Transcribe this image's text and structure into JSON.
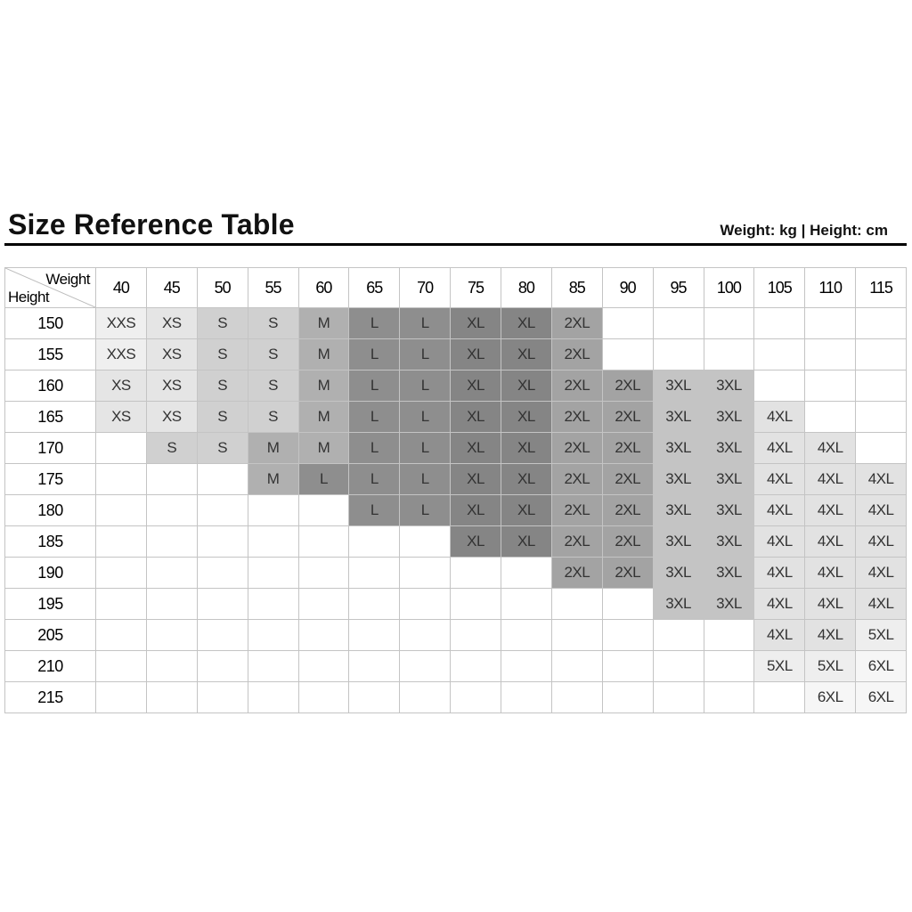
{
  "title": "Size Reference Table",
  "units": "Weight: kg | Height: cm",
  "corner": {
    "weight_label": "Weight",
    "height_label": "Height"
  },
  "weights": [
    "40",
    "45",
    "50",
    "55",
    "60",
    "65",
    "70",
    "75",
    "80",
    "85",
    "90",
    "95",
    "100",
    "105",
    "110",
    "115"
  ],
  "rows": [
    {
      "height": "150",
      "sizes": [
        "XXS",
        "XS",
        "S",
        "S",
        "M",
        "L",
        "L",
        "XL",
        "XL",
        "2XL",
        "",
        "",
        "",
        "",
        "",
        ""
      ]
    },
    {
      "height": "155",
      "sizes": [
        "XXS",
        "XS",
        "S",
        "S",
        "M",
        "L",
        "L",
        "XL",
        "XL",
        "2XL",
        "",
        "",
        "",
        "",
        "",
        ""
      ]
    },
    {
      "height": "160",
      "sizes": [
        "XS",
        "XS",
        "S",
        "S",
        "M",
        "L",
        "L",
        "XL",
        "XL",
        "2XL",
        "2XL",
        "3XL",
        "3XL",
        "",
        "",
        ""
      ]
    },
    {
      "height": "165",
      "sizes": [
        "XS",
        "XS",
        "S",
        "S",
        "M",
        "L",
        "L",
        "XL",
        "XL",
        "2XL",
        "2XL",
        "3XL",
        "3XL",
        "4XL",
        "",
        ""
      ]
    },
    {
      "height": "170",
      "sizes": [
        "",
        "S",
        "S",
        "M",
        "M",
        "L",
        "L",
        "XL",
        "XL",
        "2XL",
        "2XL",
        "3XL",
        "3XL",
        "4XL",
        "4XL",
        ""
      ]
    },
    {
      "height": "175",
      "sizes": [
        "",
        "",
        "",
        "M",
        "L",
        "L",
        "L",
        "XL",
        "XL",
        "2XL",
        "2XL",
        "3XL",
        "3XL",
        "4XL",
        "4XL",
        "4XL"
      ]
    },
    {
      "height": "180",
      "sizes": [
        "",
        "",
        "",
        "",
        "",
        "L",
        "L",
        "XL",
        "XL",
        "2XL",
        "2XL",
        "3XL",
        "3XL",
        "4XL",
        "4XL",
        "4XL"
      ]
    },
    {
      "height": "185",
      "sizes": [
        "",
        "",
        "",
        "",
        "",
        "",
        "",
        "XL",
        "XL",
        "2XL",
        "2XL",
        "3XL",
        "3XL",
        "4XL",
        "4XL",
        "4XL"
      ]
    },
    {
      "height": "190",
      "sizes": [
        "",
        "",
        "",
        "",
        "",
        "",
        "",
        "",
        "",
        "2XL",
        "2XL",
        "3XL",
        "3XL",
        "4XL",
        "4XL",
        "4XL"
      ]
    },
    {
      "height": "195",
      "sizes": [
        "",
        "",
        "",
        "",
        "",
        "",
        "",
        "",
        "",
        "",
        "",
        "3XL",
        "3XL",
        "4XL",
        "4XL",
        "4XL"
      ]
    },
    {
      "height": "205",
      "sizes": [
        "",
        "",
        "",
        "",
        "",
        "",
        "",
        "",
        "",
        "",
        "",
        "",
        "",
        "4XL",
        "4XL",
        "5XL"
      ]
    },
    {
      "height": "210",
      "sizes": [
        "",
        "",
        "",
        "",
        "",
        "",
        "",
        "",
        "",
        "",
        "",
        "",
        "",
        "5XL",
        "5XL",
        "6XL"
      ]
    },
    {
      "height": "215",
      "sizes": [
        "",
        "",
        "",
        "",
        "",
        "",
        "",
        "",
        "",
        "",
        "",
        "",
        "",
        "",
        "6XL",
        "6XL"
      ]
    }
  ],
  "size_colors": {
    "XXS": "#efefef",
    "XS": "#e5e5e5",
    "S": "#d0d0d0",
    "M": "#b0b0b0",
    "L": "#8e8e8e",
    "XL": "#858585",
    "2XL": "#a3a3a3",
    "3XL": "#c4c4c4",
    "4XL": "#e2e2e2",
    "5XL": "#eeeeee",
    "6XL": "#f6f6f6"
  }
}
